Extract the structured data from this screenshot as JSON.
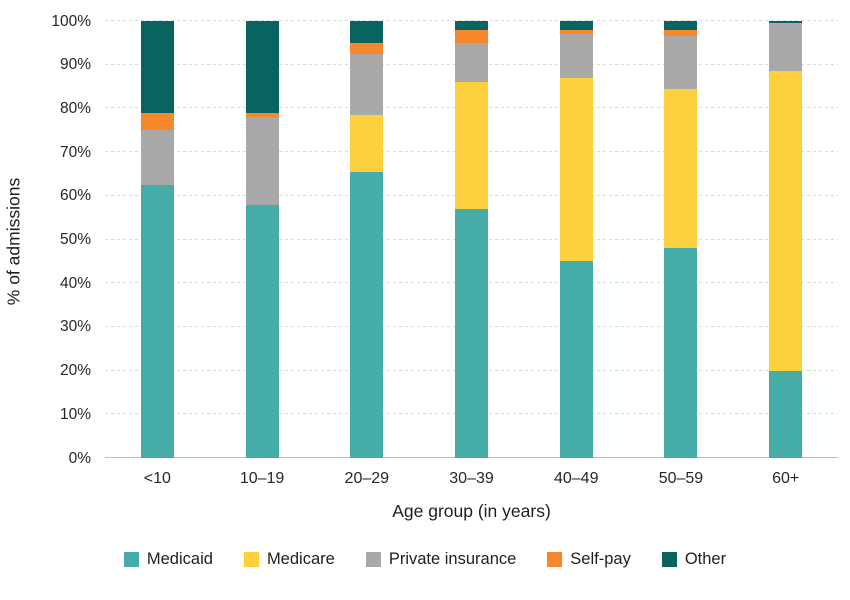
{
  "chart_data": {
    "type": "bar",
    "stacked": true,
    "title": "",
    "xlabel": "Age group (in years)",
    "ylabel": "% of admissions",
    "categories": [
      "<10",
      "10–19",
      "20–29",
      "30–39",
      "40–49",
      "50–59",
      "60+"
    ],
    "series": [
      {
        "name": "Medicaid",
        "color": "#46ACA7",
        "values": [
          62.5,
          58,
          65.5,
          57,
          45,
          48,
          20
        ]
      },
      {
        "name": "Medicare",
        "color": "#FDD13E",
        "values": [
          0,
          0,
          13,
          29,
          42,
          36.5,
          68.5
        ]
      },
      {
        "name": "Private insurance",
        "color": "#A9A9A9",
        "values": [
          12.5,
          20,
          14,
          9,
          10,
          12,
          11
        ]
      },
      {
        "name": "Self-pay",
        "color": "#F6872B",
        "values": [
          4,
          1,
          2.5,
          3,
          1,
          1.5,
          0
        ]
      },
      {
        "name": "Other",
        "color": "#086361",
        "values": [
          21,
          21,
          5,
          2,
          2,
          2,
          0.5
        ]
      }
    ],
    "ylim": [
      0,
      100
    ],
    "ytick_step": 10,
    "ytick_suffix": "%",
    "grid": true,
    "legend_position": "bottom"
  },
  "colors": {
    "grid": "#D9D9D9",
    "axis_baseline": "#BFBFBF",
    "text": "#262626"
  }
}
